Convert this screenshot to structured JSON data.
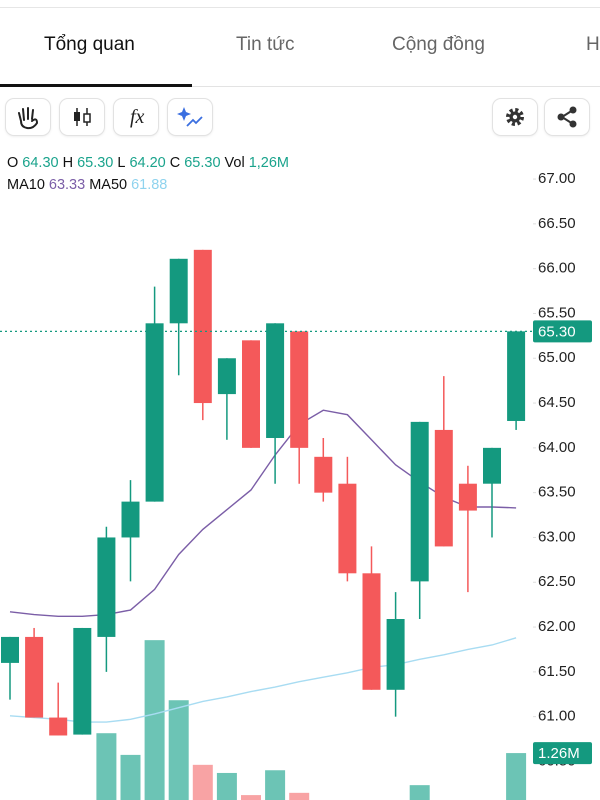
{
  "tabs": [
    "Tổng quan",
    "Tin tức",
    "Cộng đồng",
    "H"
  ],
  "toolbar": {
    "indicator_icon": "fx"
  },
  "legend": {
    "ohlc": [
      {
        "key": "O",
        "value": "64.30"
      },
      {
        "key": "H",
        "value": "65.30"
      },
      {
        "key": "L",
        "value": "64.20"
      },
      {
        "key": "C",
        "value": "65.30"
      },
      {
        "key": "Vol",
        "value": "1,26M"
      }
    ],
    "ma": [
      {
        "key": "MA10",
        "value": "63.33",
        "color": "#7b5ea7"
      },
      {
        "key": "MA50",
        "value": "61.88",
        "color": "#8fd3ee"
      }
    ],
    "value_color": "#1aa38c"
  },
  "chart_data": {
    "type": "candlestick",
    "open": [
      61.6,
      61.89,
      60.99,
      60.8,
      61.89,
      63.0,
      63.4,
      65.39,
      66.21,
      64.6,
      65.2,
      64.11,
      65.3,
      63.9,
      63.6,
      62.6,
      61.3,
      62.51,
      64.2,
      63.6,
      63.6,
      64.3
    ],
    "high": [
      61.89,
      61.99,
      61.38,
      61.99,
      63.12,
      63.64,
      65.8,
      66.11,
      66.21,
      65.0,
      65.2,
      65.39,
      65.3,
      64.11,
      63.9,
      62.9,
      62.39,
      64.29,
      64.8,
      63.8,
      64.0,
      65.3
    ],
    "low": [
      61.19,
      60.99,
      60.79,
      60.8,
      61.5,
      62.51,
      63.4,
      64.81,
      64.31,
      64.09,
      64.0,
      63.6,
      63.6,
      63.4,
      62.51,
      61.3,
      61.0,
      62.09,
      62.9,
      62.39,
      63.0,
      64.2
    ],
    "close": [
      61.89,
      60.99,
      60.79,
      61.99,
      63.0,
      63.4,
      65.39,
      66.11,
      64.5,
      65.0,
      64.0,
      65.39,
      64.0,
      63.5,
      62.6,
      61.3,
      62.09,
      64.29,
      62.9,
      63.3,
      64.0,
      65.3
    ],
    "volume": [
      0.15,
      0.15,
      0.15,
      0.18,
      1.7,
      1.22,
      3.76,
      2.43,
      1.0,
      0.82,
      0.33,
      0.88,
      0.38,
      0.15,
      0.15,
      0.15,
      0.15,
      0.55,
      0.15,
      0.15,
      0.15,
      1.26
    ],
    "ma10": [
      62.17,
      62.14,
      62.12,
      62.12,
      62.14,
      62.19,
      62.42,
      62.81,
      63.09,
      63.31,
      63.53,
      63.92,
      64.26,
      64.42,
      64.37,
      64.09,
      63.81,
      63.62,
      63.45,
      63.34,
      63.34,
      63.33
    ],
    "ma50": [
      61.01,
      60.99,
      60.97,
      60.94,
      60.94,
      60.97,
      61.03,
      61.1,
      61.17,
      61.22,
      61.28,
      61.33,
      61.39,
      61.44,
      61.49,
      61.55,
      61.58,
      61.64,
      61.69,
      61.75,
      61.8,
      61.88
    ],
    "ma10_color": "#7b5ea7",
    "ma50_color": "#a8dcf2",
    "up_color": "#14997f",
    "down_color": "#f4595a",
    "volume_up_color": "#6cc4b5",
    "volume_down_color": "#f8a3a4",
    "ylim": [
      60.07,
      67.38
    ],
    "volume_ylim": [
      0,
      14.5
    ],
    "yticks": [
      {
        "value": 60.5,
        "label": "60.50"
      },
      {
        "value": 61,
        "label": "61.00"
      },
      {
        "value": 61.5,
        "label": "61.50"
      },
      {
        "value": 62,
        "label": "62.00"
      },
      {
        "value": 62.5,
        "label": "62.50"
      },
      {
        "value": 63,
        "label": "63.00"
      },
      {
        "value": 63.5,
        "label": "63.50"
      },
      {
        "value": 64,
        "label": "64.00"
      },
      {
        "value": 64.5,
        "label": "64.50"
      },
      {
        "value": 65,
        "label": "65.00"
      },
      {
        "value": 65.5,
        "label": "65.50"
      },
      {
        "value": 66,
        "label": "66.00"
      },
      {
        "value": 66.5,
        "label": "66.50"
      },
      {
        "value": 67,
        "label": "67.00"
      }
    ],
    "last_price": {
      "value": 65.3,
      "label": "65.30"
    },
    "last_volume": {
      "value": 1.26,
      "label": "1.26M"
    }
  }
}
